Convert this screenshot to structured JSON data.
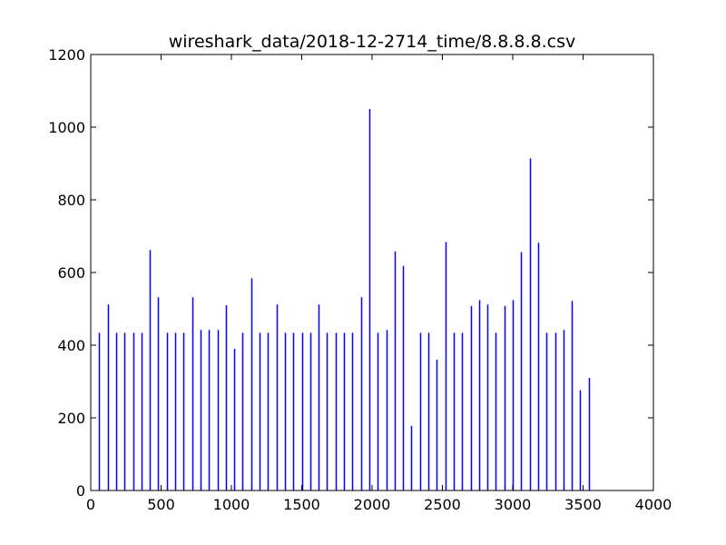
{
  "chart_data": {
    "type": "bar",
    "title": "wireshark_data/2018-12-2714_time/8.8.8.8.csv",
    "xlim": [
      0,
      4000
    ],
    "ylim": [
      0,
      1200
    ],
    "xticks": [
      0,
      500,
      1000,
      1500,
      2000,
      2500,
      3000,
      3500,
      4000
    ],
    "yticks": [
      0,
      200,
      400,
      600,
      800,
      1000,
      1200
    ],
    "grid": false,
    "color": "#0000ff",
    "x": [
      60,
      120,
      180,
      240,
      300,
      360,
      420,
      480,
      540,
      600,
      660,
      720,
      780,
      840,
      900,
      960,
      1020,
      1080,
      1140,
      1200,
      1260,
      1320,
      1380,
      1440,
      1500,
      1560,
      1620,
      1680,
      1740,
      1800,
      1860,
      1920,
      1980,
      2040,
      2100,
      2160,
      2220,
      2280,
      2340,
      2400,
      2460,
      2520,
      2580,
      2640,
      2700,
      2760,
      2820,
      2880,
      2940,
      3000,
      3060,
      3120,
      3180,
      3240,
      3300,
      3360,
      3420,
      3480,
      3540
    ],
    "values": [
      434,
      512,
      434,
      434,
      434,
      434,
      662,
      532,
      434,
      434,
      434,
      532,
      442,
      442,
      442,
      510,
      390,
      434,
      584,
      434,
      434,
      512,
      434,
      434,
      434,
      434,
      512,
      434,
      434,
      434,
      434,
      532,
      1050,
      434,
      442,
      658,
      618,
      178,
      434,
      434,
      360,
      684,
      434,
      434,
      508,
      524,
      512,
      434,
      508,
      524,
      656,
      914,
      682,
      434,
      434,
      442,
      522,
      276,
      310
    ]
  }
}
